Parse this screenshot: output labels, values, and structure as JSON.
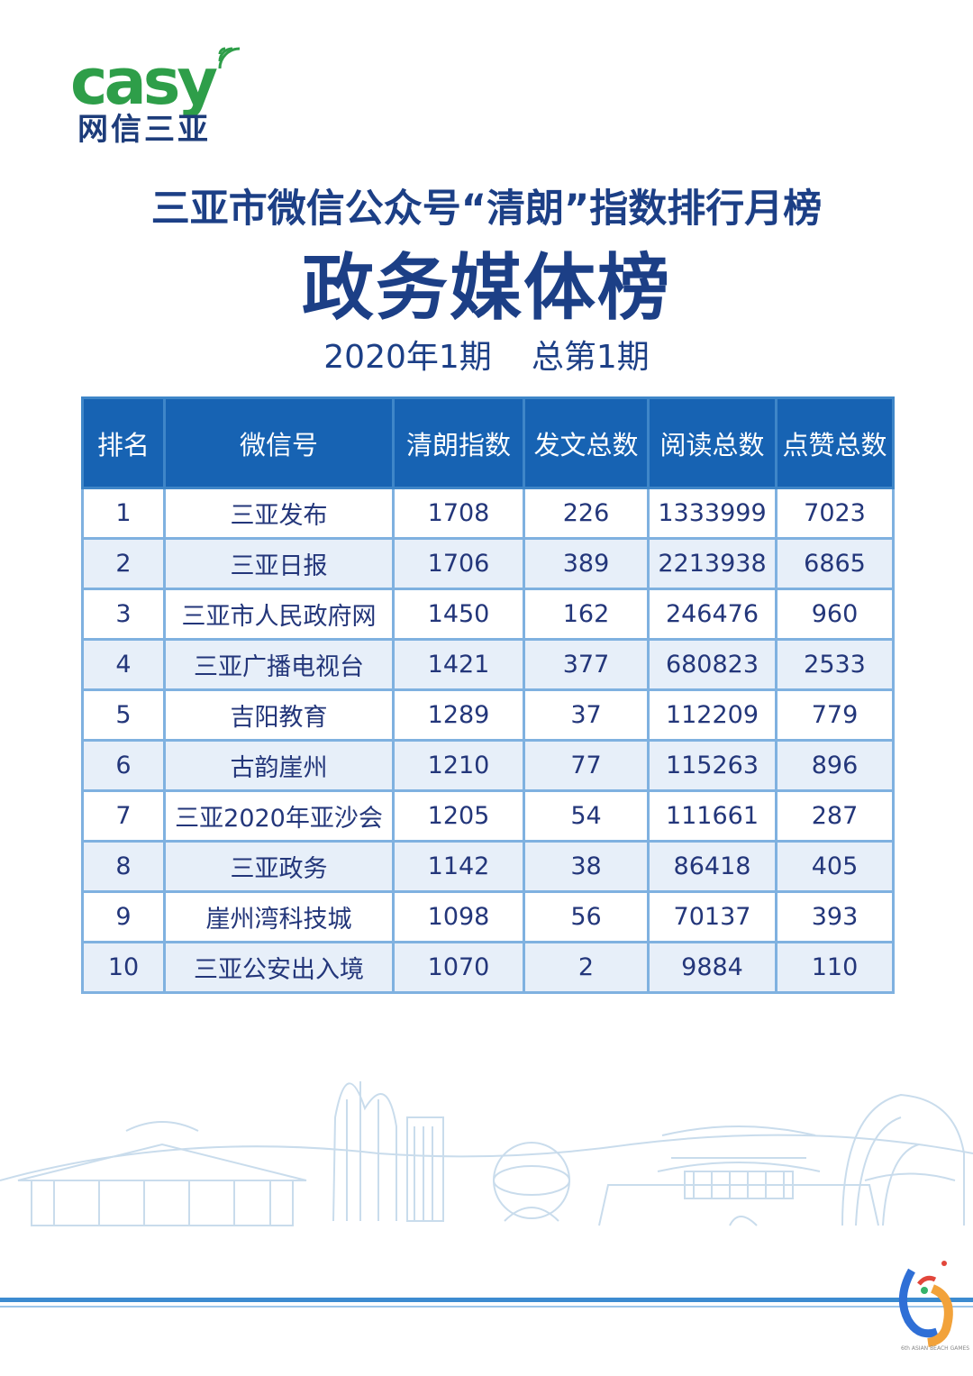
{
  "brand": {
    "wordmark": "casy",
    "subtitle": "网信三亚",
    "color": "#2e9e49",
    "subtitle_color": "#1d3c7a"
  },
  "header": {
    "title": "三亚市微信公众号“清朗”指数排行月榜",
    "subtitle": "政务媒体榜",
    "period": "2020年1期",
    "issue": "总第1期"
  },
  "table": {
    "columns": [
      "排名",
      "微信号",
      "清朗指数",
      "发文总数",
      "阅读总数",
      "点赞总数"
    ],
    "rows": [
      [
        "1",
        "三亚发布",
        "1708",
        "226",
        "1333999",
        "7023"
      ],
      [
        "2",
        "三亚日报",
        "1706",
        "389",
        "2213938",
        "6865"
      ],
      [
        "3",
        "三亚市人民政府网",
        "1450",
        "162",
        "246476",
        "960"
      ],
      [
        "4",
        "三亚广播电视台",
        "1421",
        "377",
        "680823",
        "2533"
      ],
      [
        "5",
        "吉阳教育",
        "1289",
        "37",
        "112209",
        "779"
      ],
      [
        "6",
        "古韵崖州",
        "1210",
        "77",
        "115263",
        "896"
      ],
      [
        "7",
        "三亚2020年亚沙会",
        "1205",
        "54",
        "111661",
        "287"
      ],
      [
        "8",
        "三亚政务",
        "1142",
        "38",
        "86418",
        "405"
      ],
      [
        "9",
        "崖州湾科技城",
        "1098",
        "56",
        "70137",
        "393"
      ],
      [
        "10",
        "三亚公安出入境",
        "1070",
        "2",
        "9884",
        "110"
      ]
    ],
    "header_color": "#1763b3",
    "stripe_color": "#e7eff9",
    "text_color": "#23367a"
  },
  "decor": {
    "skyline_icon": "city-skyline-illustration",
    "games_logo_icon": "asian-beach-games-logo",
    "games_logo_text": "6th ASIAN BEACH GAMES"
  }
}
